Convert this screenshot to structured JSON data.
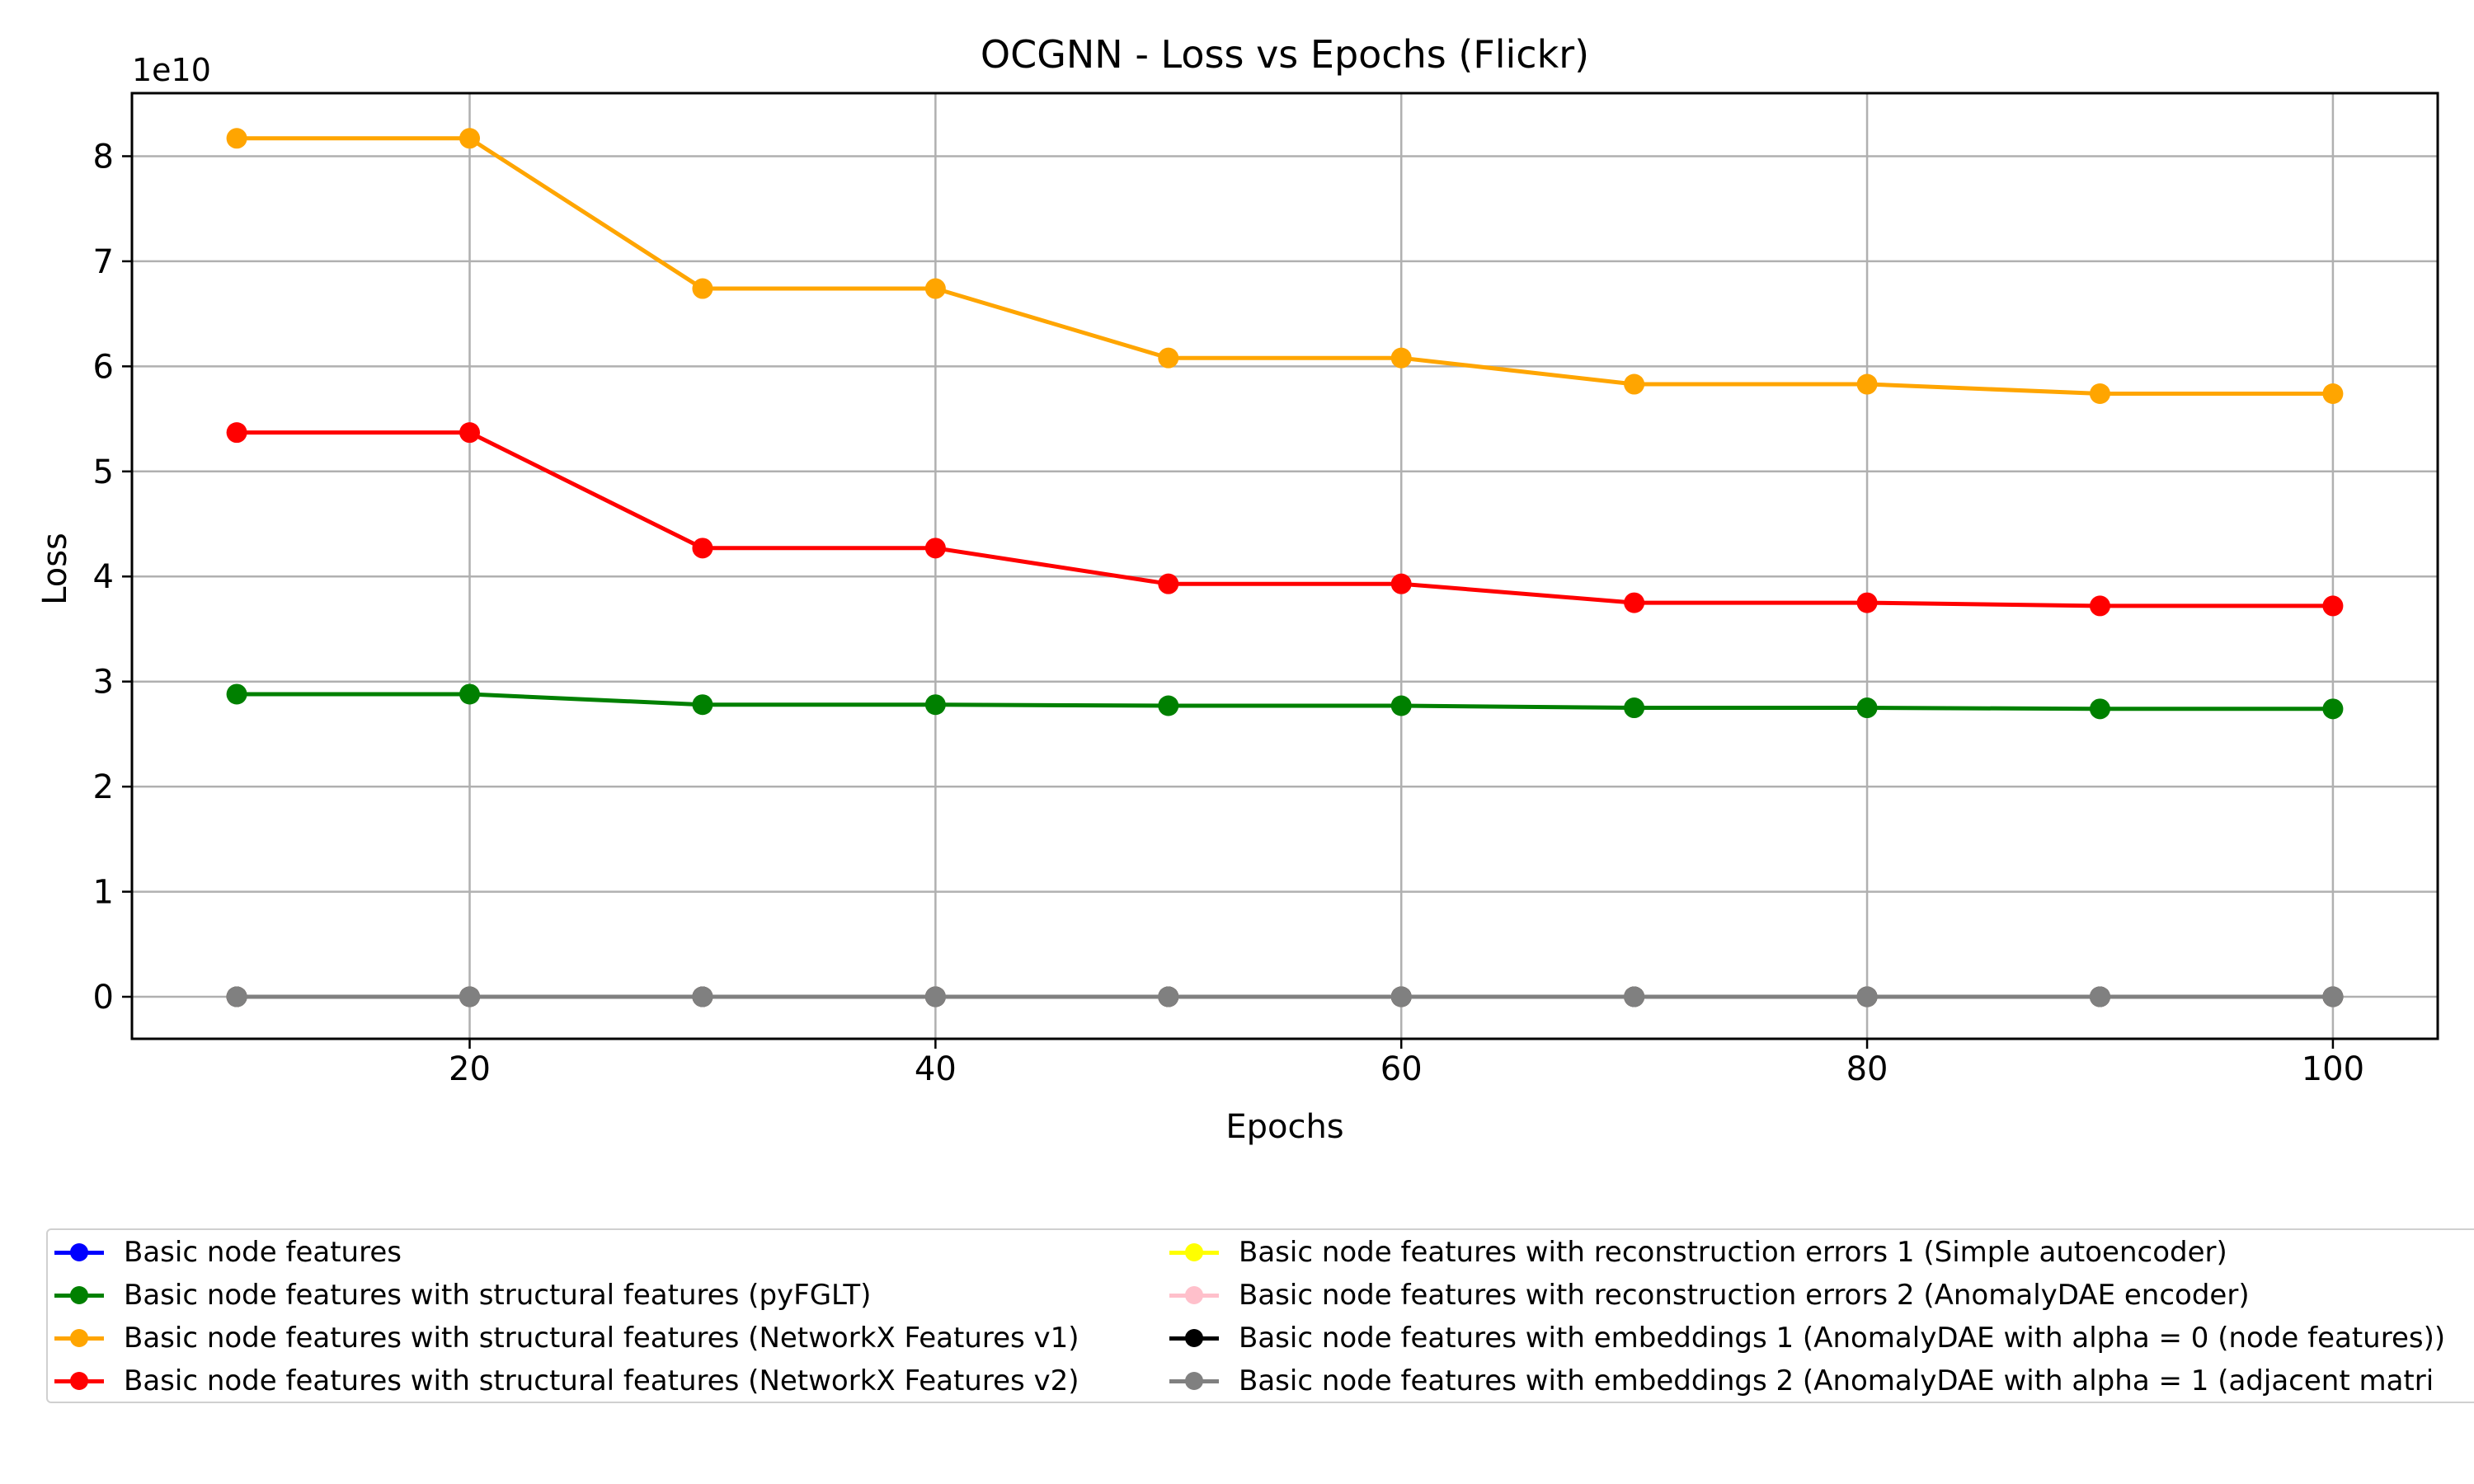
{
  "chart_data": {
    "type": "line",
    "title": "OCGNN - Loss vs Epochs (Flickr)",
    "xlabel": "Epochs",
    "ylabel": "Loss",
    "y_offset_label": "1e10",
    "x": [
      10,
      20,
      30,
      40,
      50,
      60,
      70,
      80,
      90,
      100
    ],
    "xlim": [
      5.5,
      104.5
    ],
    "ylim": [
      -4000000000.0,
      86000000000.0
    ],
    "xticks": [
      20,
      40,
      60,
      80,
      100
    ],
    "yticks": [
      0,
      1,
      2,
      3,
      4,
      5,
      6,
      7,
      8
    ],
    "grid": true,
    "legend_position": "bottom",
    "series": [
      {
        "name": "Basic node features",
        "color": "#0000ff",
        "values": [
          1000000.0,
          1000000.0,
          1000000.0,
          1000000.0,
          1000000.0,
          1000000.0,
          1000000.0,
          1000000.0,
          1000000.0,
          1000000.0
        ]
      },
      {
        "name": "Basic node features with structural features (pyFGLT)",
        "color": "#008000",
        "values": [
          28800000000.0,
          28800000000.0,
          27800000000.0,
          27800000000.0,
          27700000000.0,
          27700000000.0,
          27500000000.0,
          27500000000.0,
          27400000000.0,
          27400000000.0
        ]
      },
      {
        "name": "Basic node features with structural features (NetworkX Features v1)",
        "color": "#ffa500",
        "values": [
          81700000000.0,
          81700000000.0,
          67400000000.0,
          67400000000.0,
          60800000000.0,
          60800000000.0,
          58300000000.0,
          58300000000.0,
          57400000000.0,
          57400000000.0
        ]
      },
      {
        "name": "Basic node features with structural features (NetworkX Features v2)",
        "color": "#ff0000",
        "values": [
          53700000000.0,
          53700000000.0,
          42700000000.0,
          42700000000.0,
          39300000000.0,
          39300000000.0,
          37500000000.0,
          37500000000.0,
          37200000000.0,
          37200000000.0
        ]
      },
      {
        "name": "Basic node features with reconstruction errors 1 (Simple autoencoder)",
        "color": "#ffff00",
        "values": [
          1000000.0,
          1000000.0,
          1000000.0,
          1000000.0,
          1000000.0,
          1000000.0,
          1000000.0,
          1000000.0,
          1000000.0,
          1000000.0
        ]
      },
      {
        "name": "Basic node features with reconstruction errors 2 (AnomalyDAE encoder)",
        "color": "#ffc0cb",
        "values": [
          1000000.0,
          1000000.0,
          1000000.0,
          1000000.0,
          1000000.0,
          1000000.0,
          1000000.0,
          1000000.0,
          1000000.0,
          1000000.0
        ]
      },
      {
        "name": "Basic node features with embeddings 1 (AnomalyDAE with alpha = 0 (node features))",
        "color": "#000000",
        "values": [
          1000000.0,
          1000000.0,
          1000000.0,
          1000000.0,
          1000000.0,
          1000000.0,
          1000000.0,
          1000000.0,
          1000000.0,
          1000000.0
        ]
      },
      {
        "name": "Basic node features with embeddings 2 (AnomalyDAE with alpha = 1 (adjacent matri",
        "color": "#808080",
        "values": [
          1000000.0,
          1000000.0,
          1000000.0,
          1000000.0,
          1000000.0,
          1000000.0,
          1000000.0,
          1000000.0,
          1000000.0,
          1000000.0
        ]
      }
    ]
  }
}
